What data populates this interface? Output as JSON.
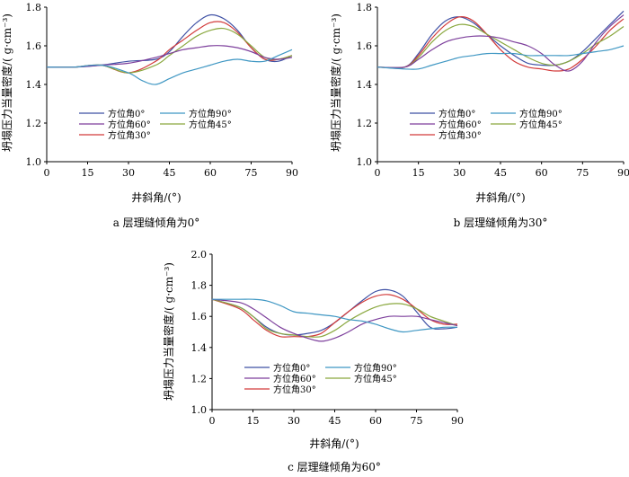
{
  "colors": {
    "0": "#3f51a5",
    "30": "#d23b3b",
    "45": "#8aa83f",
    "60": "#7d3f9c",
    "90": "#3f97c3"
  },
  "chart_data": [
    {
      "type": "line",
      "caption": "a 层理缝倾角为0°",
      "xlabel": "井斜角/(°)",
      "ylabel": "坍塌压力当量密度/( g·cm⁻³)",
      "xlim": [
        0,
        90
      ],
      "ylim": [
        1.0,
        1.8
      ],
      "x_ticks": [
        "0",
        "15",
        "30",
        "45",
        "60",
        "75",
        "90"
      ],
      "y_ticks": [
        "1.0",
        "1.2",
        "1.4",
        "1.6",
        "1.8"
      ],
      "legend": [
        "方位角0°",
        "方位角60°",
        "方位角30°",
        "方位角90°",
        "方位角45°"
      ],
      "series": [
        {
          "name": "方位角0°",
          "color_key": "0",
          "x": [
            0,
            10,
            20,
            30,
            40,
            45,
            50,
            55,
            60,
            65,
            70,
            75,
            80,
            85,
            90
          ],
          "y": [
            1.49,
            1.49,
            1.5,
            1.52,
            1.53,
            1.57,
            1.65,
            1.72,
            1.76,
            1.74,
            1.68,
            1.59,
            1.53,
            1.52,
            1.55
          ]
        },
        {
          "name": "方位角30°",
          "color_key": "30",
          "x": [
            0,
            10,
            20,
            30,
            40,
            45,
            50,
            55,
            60,
            65,
            70,
            75,
            80,
            85,
            90
          ],
          "y": [
            1.49,
            1.49,
            1.5,
            1.46,
            1.52,
            1.58,
            1.63,
            1.68,
            1.72,
            1.72,
            1.67,
            1.59,
            1.53,
            1.53,
            1.55
          ]
        },
        {
          "name": "方位角45°",
          "color_key": "45",
          "x": [
            0,
            10,
            20,
            30,
            40,
            45,
            50,
            55,
            60,
            65,
            70,
            75,
            80,
            85,
            90
          ],
          "y": [
            1.49,
            1.49,
            1.5,
            1.46,
            1.5,
            1.55,
            1.6,
            1.65,
            1.68,
            1.69,
            1.66,
            1.6,
            1.54,
            1.53,
            1.55
          ]
        },
        {
          "name": "方位角60°",
          "color_key": "60",
          "x": [
            0,
            10,
            20,
            30,
            40,
            45,
            50,
            55,
            60,
            65,
            70,
            75,
            80,
            85,
            90
          ],
          "y": [
            1.49,
            1.49,
            1.5,
            1.51,
            1.54,
            1.56,
            1.58,
            1.59,
            1.6,
            1.6,
            1.59,
            1.57,
            1.54,
            1.53,
            1.54
          ]
        },
        {
          "name": "方位角90°",
          "color_key": "90",
          "x": [
            0,
            10,
            20,
            30,
            35,
            40,
            45,
            50,
            55,
            60,
            65,
            70,
            75,
            80,
            85,
            90
          ],
          "y": [
            1.49,
            1.49,
            1.5,
            1.46,
            1.42,
            1.4,
            1.43,
            1.46,
            1.48,
            1.5,
            1.52,
            1.53,
            1.52,
            1.52,
            1.55,
            1.58
          ]
        }
      ]
    },
    {
      "type": "line",
      "caption": "b 层理缝倾角为30°",
      "xlabel": "井斜角/(°)",
      "ylabel": "坍塌压力当量密度/( g·cm⁻³)",
      "xlim": [
        0,
        90
      ],
      "ylim": [
        1.0,
        1.8
      ],
      "x_ticks": [
        "0",
        "15",
        "30",
        "45",
        "60",
        "75",
        "90"
      ],
      "y_ticks": [
        "1.0",
        "1.2",
        "1.4",
        "1.6",
        "1.8"
      ],
      "legend": [
        "方位角0°",
        "方位角60°",
        "方位角30°",
        "方位角90°",
        "方位角45°"
      ],
      "series": [
        {
          "name": "方位角0°",
          "color_key": "0",
          "x": [
            0,
            10,
            15,
            20,
            25,
            30,
            35,
            40,
            45,
            50,
            55,
            60,
            65,
            70,
            75,
            80,
            85,
            90
          ],
          "y": [
            1.49,
            1.49,
            1.56,
            1.66,
            1.73,
            1.75,
            1.72,
            1.66,
            1.6,
            1.55,
            1.51,
            1.5,
            1.5,
            1.52,
            1.57,
            1.64,
            1.71,
            1.78
          ]
        },
        {
          "name": "方位角30°",
          "color_key": "30",
          "x": [
            0,
            10,
            15,
            20,
            25,
            30,
            35,
            40,
            45,
            50,
            55,
            60,
            65,
            70,
            75,
            80,
            85,
            90
          ],
          "y": [
            1.49,
            1.49,
            1.55,
            1.64,
            1.71,
            1.75,
            1.73,
            1.66,
            1.58,
            1.52,
            1.49,
            1.48,
            1.47,
            1.48,
            1.53,
            1.6,
            1.68,
            1.74
          ]
        },
        {
          "name": "方位角45°",
          "color_key": "45",
          "x": [
            0,
            10,
            15,
            20,
            25,
            30,
            35,
            40,
            45,
            50,
            55,
            60,
            65,
            70,
            75,
            80,
            85,
            90
          ],
          "y": [
            1.49,
            1.49,
            1.54,
            1.62,
            1.68,
            1.71,
            1.7,
            1.66,
            1.62,
            1.58,
            1.54,
            1.51,
            1.5,
            1.52,
            1.56,
            1.61,
            1.65,
            1.7
          ]
        },
        {
          "name": "方位角60°",
          "color_key": "60",
          "x": [
            0,
            10,
            15,
            20,
            25,
            30,
            35,
            40,
            45,
            50,
            55,
            60,
            65,
            70,
            75,
            80,
            85,
            90
          ],
          "y": [
            1.49,
            1.49,
            1.53,
            1.58,
            1.62,
            1.64,
            1.65,
            1.65,
            1.64,
            1.62,
            1.6,
            1.56,
            1.5,
            1.47,
            1.52,
            1.62,
            1.7,
            1.76
          ]
        },
        {
          "name": "方位角90°",
          "color_key": "90",
          "x": [
            0,
            10,
            15,
            20,
            25,
            30,
            35,
            40,
            45,
            50,
            55,
            60,
            65,
            70,
            75,
            80,
            85,
            90
          ],
          "y": [
            1.49,
            1.48,
            1.48,
            1.5,
            1.52,
            1.54,
            1.55,
            1.56,
            1.56,
            1.56,
            1.55,
            1.55,
            1.55,
            1.55,
            1.56,
            1.57,
            1.58,
            1.6
          ]
        }
      ]
    },
    {
      "type": "line",
      "caption": "c 层理缝倾角为60°",
      "xlabel": "井斜角/(°)",
      "ylabel": "坍塌压力当量密度/( g·cm⁻³)",
      "xlim": [
        0,
        90
      ],
      "ylim": [
        1.0,
        2.0
      ],
      "x_ticks": [
        "0",
        "15",
        "30",
        "45",
        "60",
        "75",
        "90"
      ],
      "y_ticks": [
        "1.0",
        "1.2",
        "1.4",
        "1.6",
        "1.8",
        "2.0"
      ],
      "legend": [
        "方位角0°",
        "方位角60°",
        "方位角30°",
        "方位角90°",
        "方位角45°"
      ],
      "series": [
        {
          "name": "方位角0°",
          "color_key": "0",
          "x": [
            0,
            10,
            15,
            20,
            25,
            30,
            35,
            40,
            45,
            50,
            55,
            60,
            65,
            70,
            75,
            80,
            85,
            90
          ],
          "y": [
            1.71,
            1.66,
            1.6,
            1.53,
            1.49,
            1.48,
            1.49,
            1.51,
            1.56,
            1.63,
            1.7,
            1.76,
            1.77,
            1.73,
            1.63,
            1.53,
            1.52,
            1.53
          ]
        },
        {
          "name": "方位角30°",
          "color_key": "30",
          "x": [
            0,
            10,
            15,
            20,
            25,
            30,
            35,
            40,
            45,
            50,
            55,
            60,
            65,
            70,
            75,
            80,
            85,
            90
          ],
          "y": [
            1.71,
            1.65,
            1.58,
            1.51,
            1.47,
            1.47,
            1.47,
            1.49,
            1.56,
            1.63,
            1.69,
            1.73,
            1.74,
            1.71,
            1.65,
            1.58,
            1.55,
            1.55
          ]
        },
        {
          "name": "方位角45°",
          "color_key": "45",
          "x": [
            0,
            10,
            15,
            20,
            25,
            30,
            35,
            40,
            45,
            50,
            55,
            60,
            65,
            70,
            75,
            80,
            85,
            90
          ],
          "y": [
            1.71,
            1.66,
            1.6,
            1.52,
            1.49,
            1.48,
            1.47,
            1.47,
            1.51,
            1.57,
            1.62,
            1.66,
            1.68,
            1.68,
            1.65,
            1.6,
            1.57,
            1.54
          ]
        },
        {
          "name": "方位角60°",
          "color_key": "60",
          "x": [
            0,
            10,
            15,
            20,
            25,
            30,
            35,
            40,
            45,
            50,
            55,
            60,
            65,
            70,
            75,
            80,
            85,
            90
          ],
          "y": [
            1.71,
            1.69,
            1.65,
            1.59,
            1.53,
            1.49,
            1.46,
            1.44,
            1.46,
            1.5,
            1.55,
            1.58,
            1.6,
            1.6,
            1.6,
            1.58,
            1.56,
            1.54
          ]
        },
        {
          "name": "方位角90°",
          "color_key": "90",
          "x": [
            0,
            10,
            15,
            20,
            25,
            30,
            35,
            40,
            45,
            50,
            55,
            60,
            65,
            70,
            75,
            80,
            85,
            90
          ],
          "y": [
            1.71,
            1.71,
            1.71,
            1.7,
            1.67,
            1.63,
            1.62,
            1.61,
            1.6,
            1.58,
            1.57,
            1.55,
            1.52,
            1.5,
            1.51,
            1.52,
            1.53,
            1.53
          ]
        }
      ]
    }
  ]
}
